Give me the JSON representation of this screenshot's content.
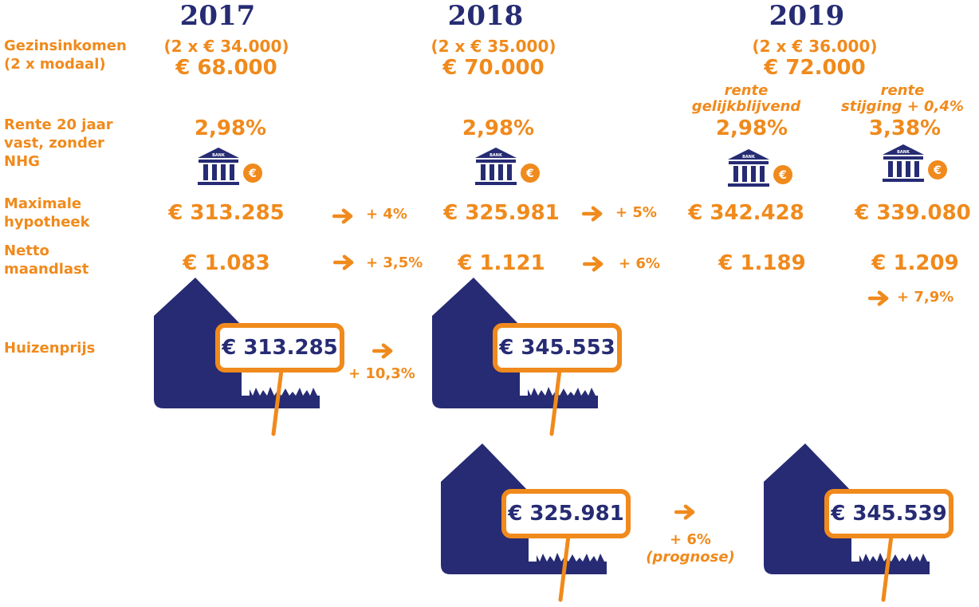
{
  "years": [
    "2017",
    "2018",
    "2019"
  ],
  "labels": {
    "income": "Gezinsinkomen\n(2 x modaal)",
    "rate": "Rente 20 jaar\nvast, zonder\nNHG",
    "max_mortgage": "Maximale\nhypotheek",
    "net_monthly": "Netto\nmaandlast",
    "house_price": "Huizenprijs"
  },
  "income": {
    "2017": {
      "detail": "(2 x € 34.000)",
      "total": "€ 68.000"
    },
    "2018": {
      "detail": "(2 x € 35.000)",
      "total": "€ 70.000"
    },
    "2019": {
      "detail": "(2 x € 36.000)",
      "total": "€ 72.000"
    }
  },
  "rates": {
    "2017": "2,98%",
    "2018": "2,98%",
    "2019_same_note": "rente\ngelijkblijvend",
    "2019_same": "2,98%",
    "2019_rise_note": "rente\nstijging + 0,4%",
    "2019_rise": "3,38%"
  },
  "bank_icon_label": "BANK",
  "bank_coin_symbol": "€",
  "max_mortgage": {
    "2017": "€ 313.285",
    "2018": "€ 325.981",
    "2019_same": "€ 342.428",
    "2019_rise": "€ 339.080",
    "change_17_18": "+ 4%",
    "change_18_19": "+ 5%"
  },
  "net_monthly": {
    "2017": "€ 1.083",
    "2018": "€ 1.121",
    "2019_same": "€ 1.189",
    "2019_rise": "€ 1.209",
    "change_17_18": "+ 3,5%",
    "change_18_19": "+ 6%",
    "change_rise": "+ 7,9%"
  },
  "house_prices": {
    "2017": "€ 313.285",
    "2018": "€ 345.553",
    "change_17_18": "+ 10,3%",
    "alt_2018": "€ 325.981",
    "alt_2019": "€ 345.539",
    "alt_change": "+ 6%",
    "alt_change_note": "(prognose)"
  },
  "colors": {
    "orange": "#f08a1c",
    "navy": "#262b73"
  }
}
